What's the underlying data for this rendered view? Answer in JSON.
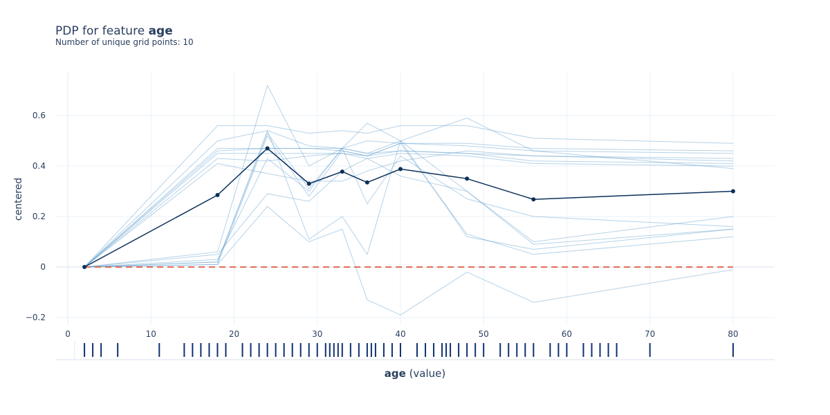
{
  "header": {
    "title_prefix": "PDP for feature ",
    "title_feature": "age",
    "subtitle": "Number of unique grid points: 10"
  },
  "chart_data": {
    "type": "line",
    "title": "PDP for feature age",
    "subtitle": "Number of unique grid points: 10",
    "xlabel_bold": "age",
    "xlabel_rest": " (value)",
    "ylabel": "centered",
    "xlim": [
      -1.5,
      85
    ],
    "ylim": [
      -0.23,
      0.77
    ],
    "xticks": [
      0,
      10,
      20,
      30,
      40,
      50,
      60,
      70,
      80
    ],
    "yticks": [
      -0.2,
      0,
      0.2,
      0.4,
      0.6
    ],
    "ytick_labels": [
      "−0.2",
      "0",
      "0.2",
      "0.4",
      "0.6"
    ],
    "grid": true,
    "x": [
      2,
      18,
      24,
      29,
      33,
      36,
      40,
      48,
      56,
      80
    ],
    "average": [
      0,
      0.285,
      0.47,
      0.33,
      0.378,
      0.335,
      0.388,
      0.35,
      0.268,
      0.3
    ],
    "reference": [
      0,
      0,
      0,
      0,
      0,
      0,
      0,
      0,
      0,
      0
    ],
    "ice_lines": [
      [
        0,
        0.56,
        0.56,
        0.53,
        0.54,
        0.53,
        0.56,
        0.56,
        0.51,
        0.49
      ],
      [
        0,
        0.5,
        0.54,
        0.48,
        0.47,
        0.5,
        0.49,
        0.49,
        0.47,
        0.46
      ],
      [
        0,
        0.47,
        0.47,
        0.47,
        0.46,
        0.44,
        0.49,
        0.48,
        0.46,
        0.45
      ],
      [
        0,
        0.46,
        0.47,
        0.47,
        0.47,
        0.45,
        0.46,
        0.45,
        0.42,
        0.41
      ],
      [
        0,
        0.45,
        0.45,
        0.45,
        0.45,
        0.43,
        0.45,
        0.44,
        0.41,
        0.4
      ],
      [
        0,
        0.43,
        0.42,
        0.44,
        0.45,
        0.44,
        0.46,
        0.45,
        0.44,
        0.42
      ],
      [
        0,
        0.41,
        0.37,
        0.34,
        0.34,
        0.38,
        0.42,
        0.46,
        0.44,
        0.43
      ],
      [
        0,
        0.06,
        0.72,
        0.4,
        0.47,
        0.57,
        0.5,
        0.3,
        0.1,
        0.2
      ],
      [
        0,
        0.02,
        0.54,
        0.11,
        0.2,
        0.05,
        0.5,
        0.59,
        0.46,
        0.39
      ],
      [
        0,
        0.02,
        0.53,
        0.31,
        0.47,
        0.45,
        0.5,
        0.12,
        0.07,
        0.15
      ],
      [
        0,
        0.01,
        0.52,
        0.28,
        0.46,
        0.44,
        0.49,
        0.13,
        0.05,
        0.12
      ],
      [
        0,
        0.03,
        0.43,
        0.3,
        0.47,
        0.25,
        0.44,
        0.27,
        0.2,
        0.16
      ],
      [
        0,
        0.05,
        0.29,
        0.26,
        0.38,
        0.43,
        0.36,
        0.3,
        0.09,
        0.15
      ],
      [
        0,
        0.01,
        0.24,
        0.1,
        0.15,
        -0.13,
        -0.19,
        -0.02,
        -0.14,
        -0.01
      ]
    ],
    "rug_x": [
      2,
      3,
      4,
      6,
      11,
      14,
      15,
      16,
      17,
      18,
      19,
      21,
      22,
      23,
      24,
      25,
      26,
      27,
      28,
      29,
      30,
      31,
      31.5,
      32,
      32.5,
      33,
      34,
      35,
      36,
      36.5,
      37,
      38,
      39,
      40,
      42,
      43,
      44,
      45,
      45.5,
      46,
      47,
      48,
      49,
      50,
      52,
      53,
      54,
      55,
      56,
      58,
      59,
      60,
      62,
      63,
      64,
      65,
      66,
      70,
      80
    ],
    "colors": {
      "average": "#0a2f5a",
      "ice": "#5c9ccc",
      "reference": "#e3684f",
      "rug": "#0f2f70",
      "grid": "#ebf0f8"
    }
  }
}
